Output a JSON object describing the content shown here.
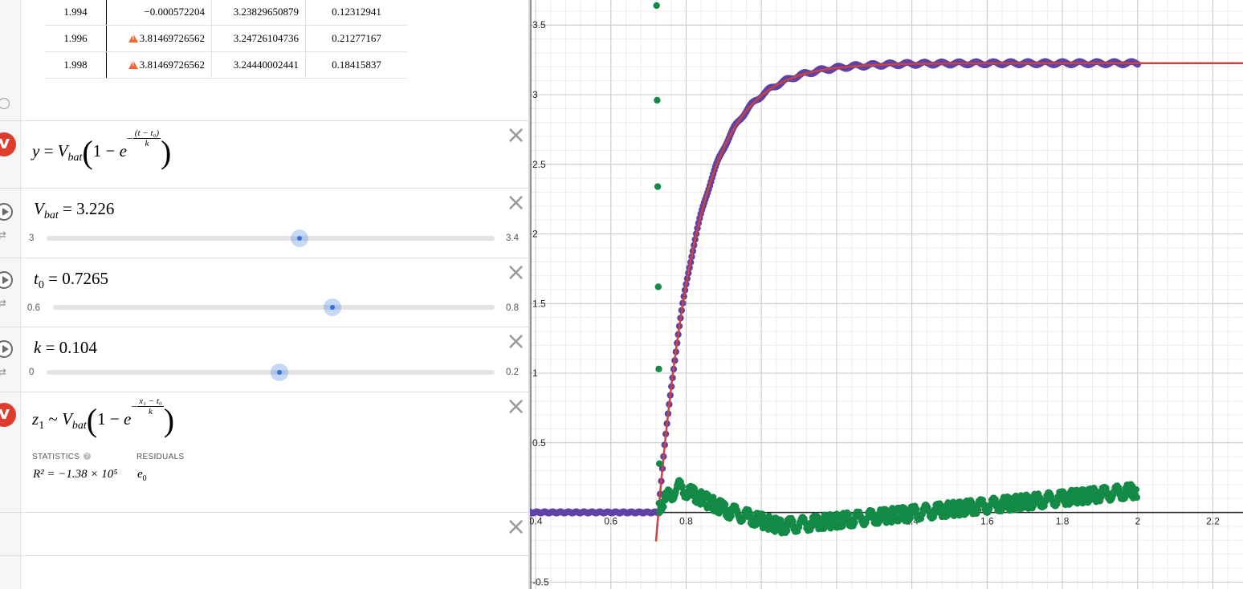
{
  "table": {
    "rows": [
      {
        "x": "1.994",
        "y": "−0.000572204",
        "warn": false,
        "c2": "3.23829650879",
        "c3": "0.12312941"
      },
      {
        "x": "1.996",
        "y": "3.81469726562",
        "warn": true,
        "c2": "3.24726104736",
        "c3": "0.21277167"
      },
      {
        "x": "1.998",
        "y": "3.81469726562",
        "warn": true,
        "c2": "3.24440002441",
        "c3": "0.18415837"
      }
    ]
  },
  "expressions": {
    "model": {
      "lhs": "y",
      "eq": "=",
      "vsym": "V",
      "vsub": "bat",
      "one": "1 −",
      "e": "e",
      "exp_num": "(t − t₀)",
      "exp_den": "k",
      "neg": "−"
    },
    "vbat": {
      "sym": "V",
      "sub": "bat",
      "eq": "=",
      "value": "3.226",
      "min": "3",
      "max": "3.4",
      "fraction": 0.565
    },
    "t0": {
      "sym": "t",
      "sub": "0",
      "eq": "=",
      "value": "0.7265",
      "min": "0.6",
      "max": "0.8",
      "fraction": 0.6325
    },
    "k": {
      "sym": "k",
      "eq": "=",
      "value": "0.104",
      "min": "0",
      "max": "0.2",
      "fraction": 0.52
    },
    "regression": {
      "lhs": "z",
      "lhs_sub": "1",
      "tilde": "~",
      "vsym": "V",
      "vsub": "bat",
      "one": "1 −",
      "e": "e",
      "exp_num": "x₁ − t₀",
      "exp_den": "k",
      "neg": "−",
      "statistics_label": "STATISTICS",
      "residuals_label": "RESIDUALS",
      "r2_text": "R² = −1.38 × 10⁵",
      "residual_var": "e",
      "residual_sub": "0"
    }
  },
  "graph": {
    "x_ticks": [
      "0.4",
      "0.6",
      "0.8",
      "1",
      "1.2",
      "1.4",
      "1.6",
      "1.8",
      "2",
      "2.2"
    ],
    "y_ticks": [
      "-0.5",
      "0.5",
      "1",
      "1.5",
      "2",
      "2.5",
      "3",
      "3.5"
    ],
    "colors": {
      "fit": "#c74440",
      "data": "#6042a6",
      "residual": "#138a46",
      "grid_major": "#c8c8c8",
      "grid_minor": "#ececec"
    }
  },
  "chart_data": {
    "type": "scatter",
    "xlim": [
      0.385,
      2.28
    ],
    "ylim": [
      -0.55,
      3.68
    ],
    "grid": true,
    "series": [
      {
        "kind": "points",
        "x_range": [
          0.38,
          2.0
        ],
        "model": "3.226*(1-exp(-(x-0.7265)/0.104)) for x>0.73 else 0.0"
      },
      {
        "kind": "line",
        "model": "3.226*(1-exp(-(x-0.7265)/0.104))"
      },
      {
        "kind": "residual-points",
        "x_range": [
          0.72,
          2.0
        ]
      }
    ]
  }
}
